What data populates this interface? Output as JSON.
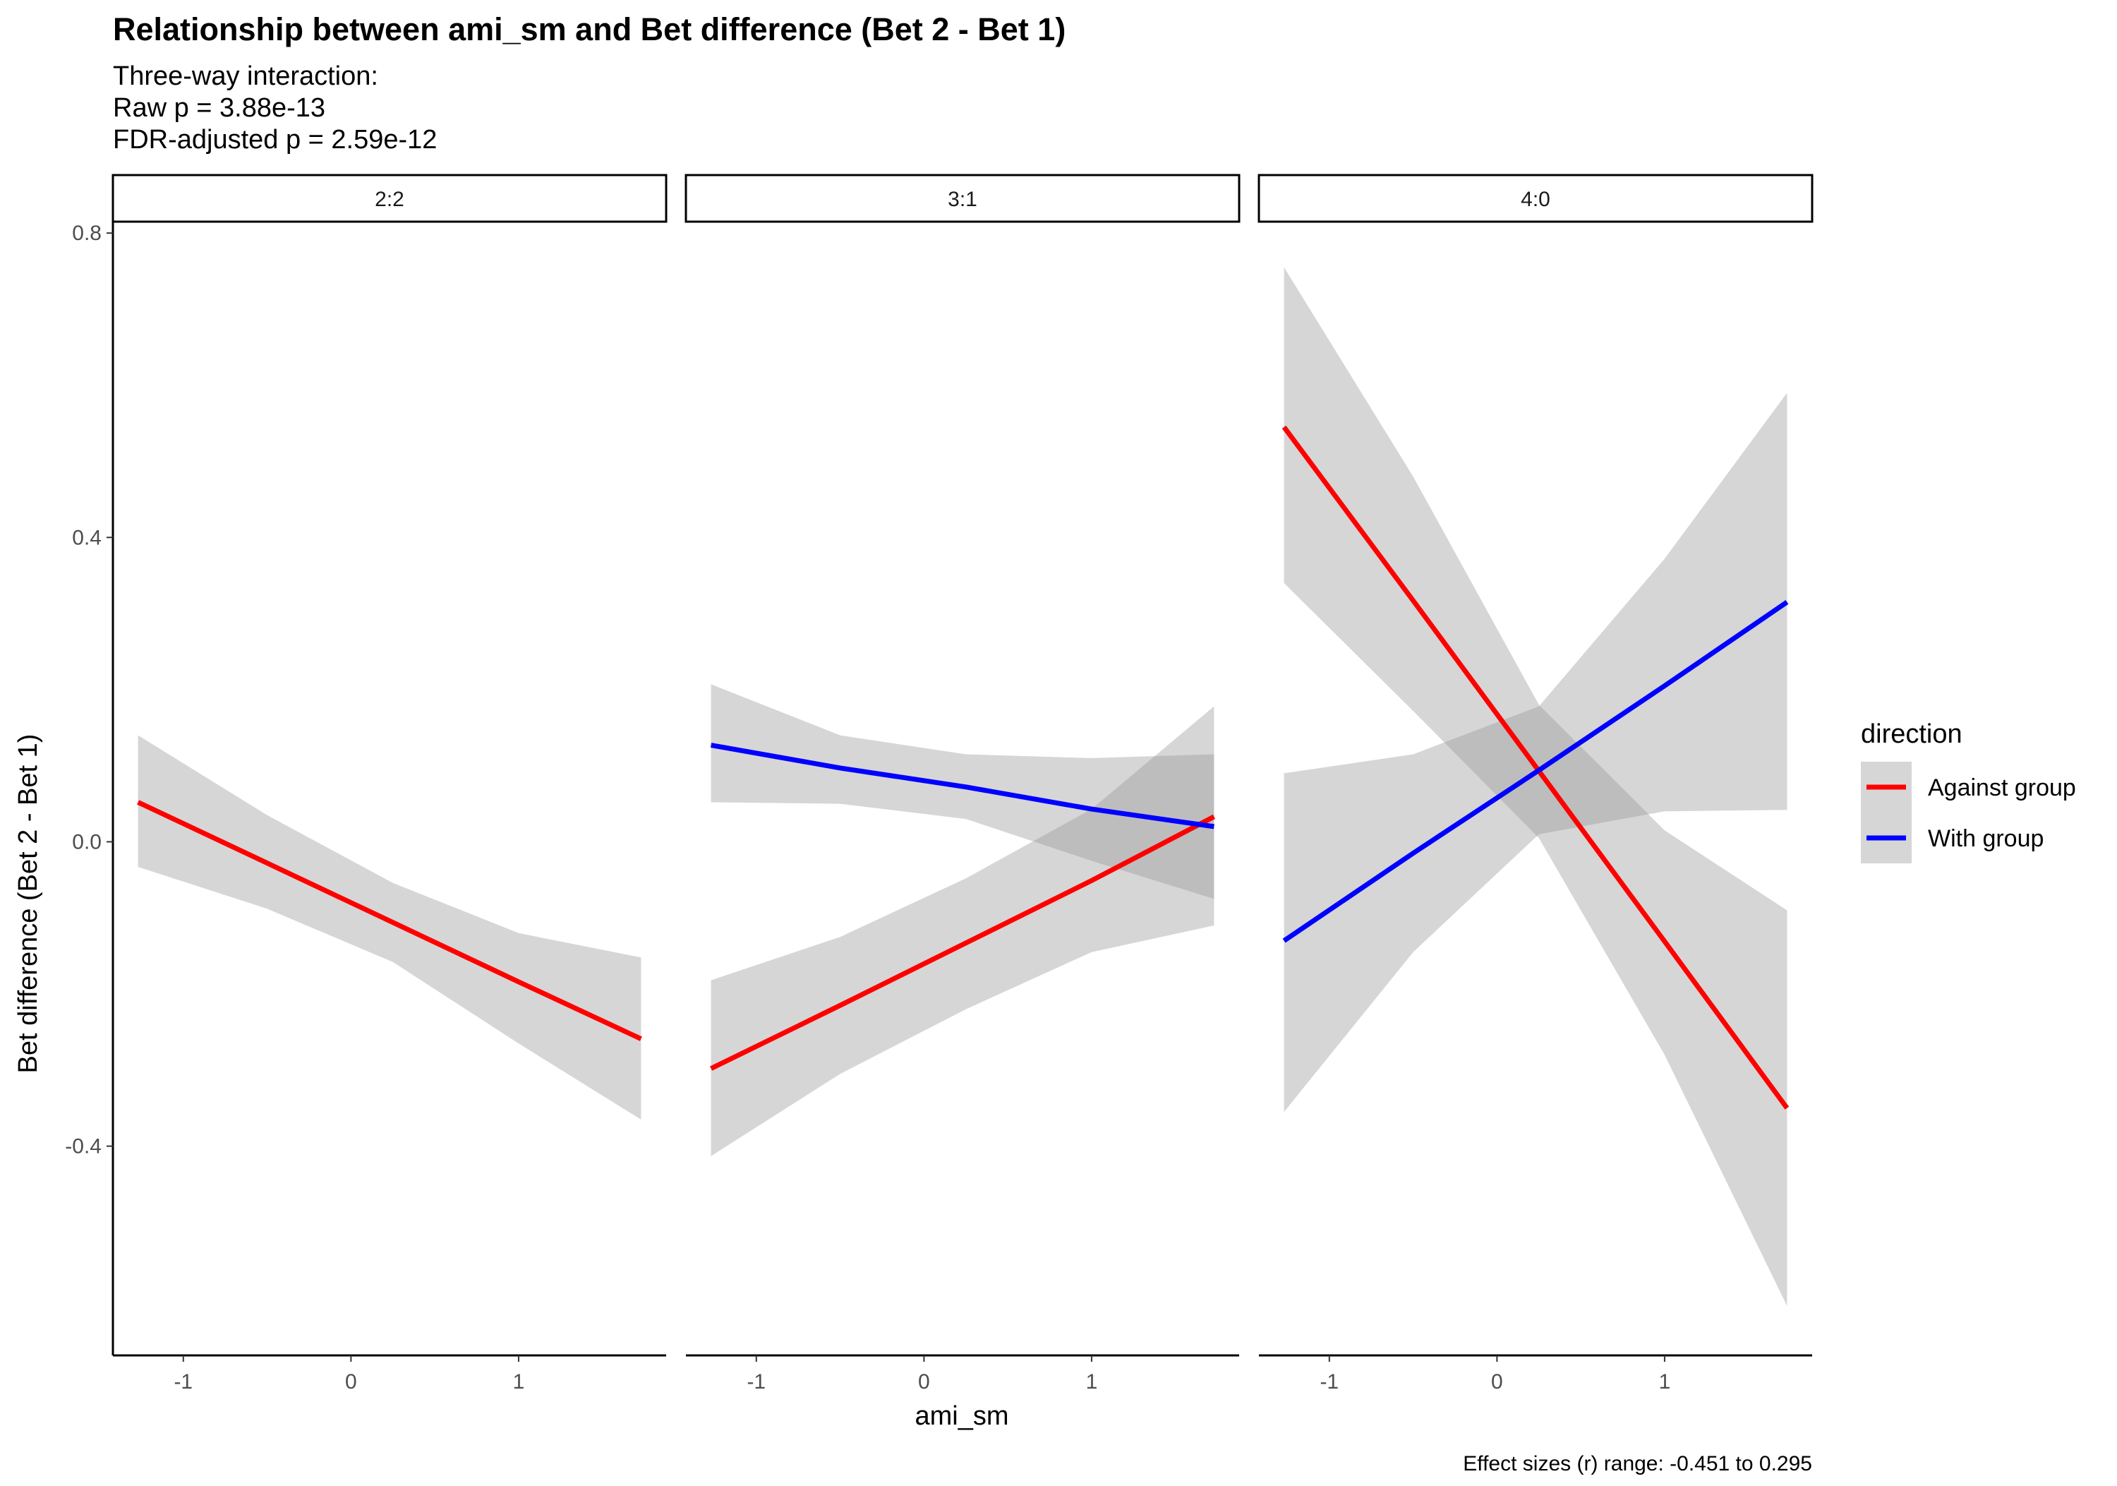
{
  "chart_data": {
    "type": "line",
    "title": "Relationship between ami_sm and Bet difference (Bet 2 - Bet 1)",
    "subtitle_lines": [
      "Three-way interaction:",
      "Raw p = 3.88e-13",
      "FDR-adjusted p = 2.59e-12"
    ],
    "xlabel": "ami_sm",
    "ylabel": "Bet difference (Bet 2 - Bet 1)",
    "caption": "Effect sizes (r) range: -0.451 to 0.295",
    "xlim": [
      -1.42,
      1.88
    ],
    "ylim": [
      -0.675,
      0.815
    ],
    "x_ticks": [
      -1,
      0,
      1
    ],
    "x_tick_labels": [
      "-1",
      "0",
      "1"
    ],
    "y_ticks": [
      -0.4,
      0.0,
      0.4,
      0.8
    ],
    "y_tick_labels": [
      "-0.4",
      "0.0",
      "0.4",
      "0.8"
    ],
    "grid": false,
    "legend": {
      "title": "direction",
      "position": "right",
      "entries": [
        {
          "label": "Against group",
          "color": "#ff0000"
        },
        {
          "label": "With group",
          "color": "#0000ff"
        }
      ]
    },
    "ribbon_color": "#999999",
    "panels": [
      {
        "label": "2:2",
        "series": [
          {
            "name": "Against group",
            "color": "#ff0000",
            "x": [
              -1.27,
              -0.5,
              0.25,
              1.0,
              1.73
            ],
            "y": [
              0.052,
              -0.028,
              -0.106,
              -0.184,
              -0.259
            ],
            "lower": [
              -0.033,
              -0.088,
              -0.158,
              -0.265,
              -0.365
            ],
            "upper": [
              0.14,
              0.035,
              -0.054,
              -0.12,
              -0.152
            ]
          }
        ]
      },
      {
        "label": "3:1",
        "series": [
          {
            "name": "Against group",
            "color": "#ff0000",
            "x": [
              -1.27,
              -0.5,
              0.25,
              1.0,
              1.73
            ],
            "y": [
              -0.298,
              -0.215,
              -0.133,
              -0.051,
              0.033
            ],
            "lower": [
              -0.413,
              -0.305,
              -0.22,
              -0.145,
              -0.11
            ],
            "upper": [
              -0.182,
              -0.125,
              -0.048,
              0.043,
              0.178
            ]
          },
          {
            "name": "With group",
            "color": "#0000ff",
            "x": [
              -1.27,
              -0.5,
              0.25,
              1.0,
              1.73
            ],
            "y": [
              0.127,
              0.097,
              0.072,
              0.043,
              0.02
            ],
            "lower": [
              0.052,
              0.05,
              0.03,
              -0.025,
              -0.075
            ],
            "upper": [
              0.207,
              0.14,
              0.115,
              0.11,
              0.115
            ]
          }
        ]
      },
      {
        "label": "4:0",
        "series": [
          {
            "name": "Against group",
            "color": "#ff0000",
            "x": [
              -1.27,
              -0.5,
              0.25,
              1.0,
              1.73
            ],
            "y": [
              0.545,
              0.317,
              0.093,
              -0.131,
              -0.35
            ],
            "lower": [
              0.34,
              0.172,
              0.005,
              -0.28,
              -0.61
            ],
            "upper": [
              0.755,
              0.48,
              0.18,
              0.015,
              -0.09
            ]
          },
          {
            "name": "With group",
            "color": "#0000ff",
            "x": [
              -1.27,
              -0.5,
              0.25,
              1.0,
              1.73
            ],
            "y": [
              -0.13,
              -0.015,
              0.094,
              0.205,
              0.315
            ],
            "lower": [
              -0.355,
              -0.145,
              0.01,
              0.04,
              0.042
            ],
            "upper": [
              0.09,
              0.115,
              0.178,
              0.372,
              0.59
            ]
          }
        ]
      }
    ]
  }
}
